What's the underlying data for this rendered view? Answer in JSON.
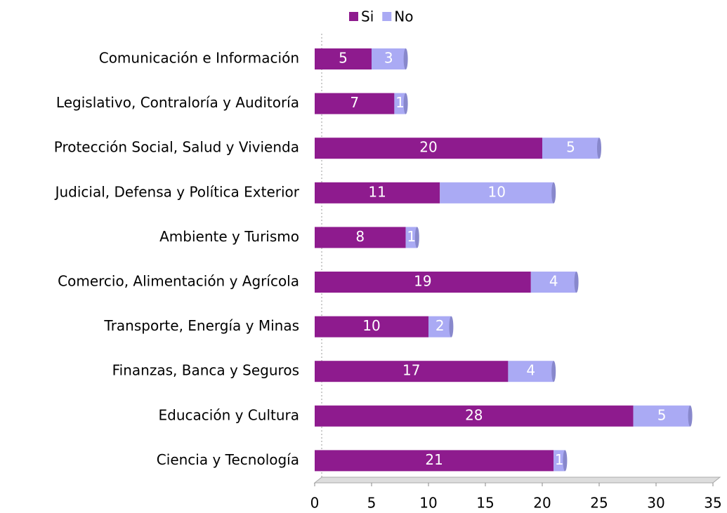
{
  "chart_data": {
    "type": "bar",
    "orientation": "horizontal",
    "stacked": true,
    "categories": [
      "Comunicación e Información",
      "Legislativo, Contraloría y Auditoría",
      "Protección Social, Salud y Vivienda",
      "Judicial, Defensa y Política Exterior",
      "Ambiente y Turismo",
      "Comercio, Alimentación y Agrícola",
      "Transporte, Energía y Minas",
      "Finanzas, Banca y Seguros",
      "Educación y Cultura",
      "Ciencia y Tecnología"
    ],
    "series": [
      {
        "name": "Si",
        "color": "#8e1b8e",
        "values": [
          5,
          7,
          20,
          11,
          8,
          19,
          10,
          17,
          28,
          21
        ]
      },
      {
        "name": "No",
        "color": "#aaaaf4",
        "values": [
          3,
          1,
          5,
          10,
          1,
          4,
          2,
          4,
          5,
          1
        ]
      }
    ],
    "xlim": [
      0,
      35
    ],
    "xticks": [
      0,
      5,
      10,
      15,
      20,
      25,
      30,
      35
    ],
    "legend": "top"
  }
}
